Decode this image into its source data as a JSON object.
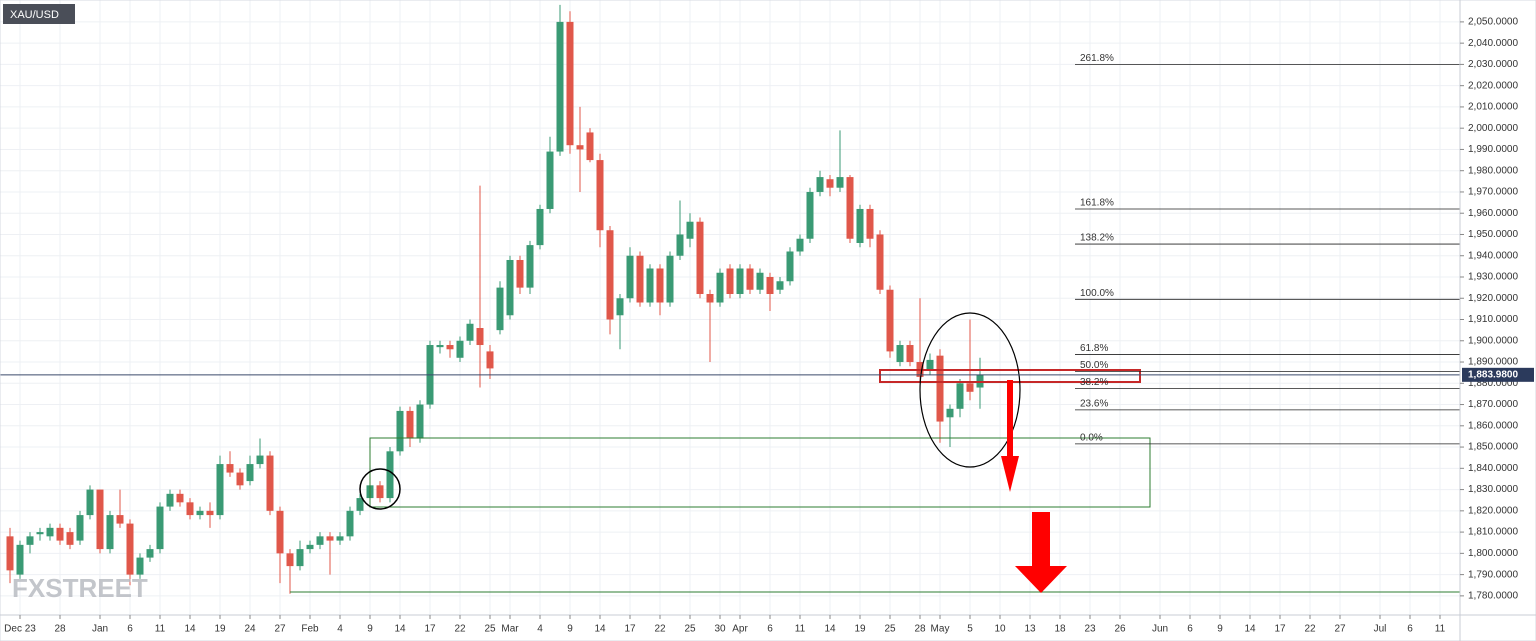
{
  "chart_data": {
    "type": "candlestick",
    "title": "XAU/USD",
    "watermark": "FXSTREET",
    "xlim": [
      -1,
      145
    ],
    "xticks": [
      {
        "value": 1,
        "label": "Dec 23"
      },
      {
        "value": 5,
        "label": "28"
      },
      {
        "value": 9,
        "label": "Jan"
      },
      {
        "value": 12,
        "label": "6"
      },
      {
        "value": 15,
        "label": "11"
      },
      {
        "value": 18,
        "label": "14"
      },
      {
        "value": 21,
        "label": "19"
      },
      {
        "value": 24,
        "label": "24"
      },
      {
        "value": 27,
        "label": "27"
      },
      {
        "value": 30,
        "label": "Feb"
      },
      {
        "value": 33,
        "label": "4"
      },
      {
        "value": 36,
        "label": "9"
      },
      {
        "value": 39,
        "label": "14"
      },
      {
        "value": 42,
        "label": "17"
      },
      {
        "value": 45,
        "label": "22"
      },
      {
        "value": 48,
        "label": "25"
      },
      {
        "value": 50,
        "label": "Mar"
      },
      {
        "value": 53,
        "label": "4"
      },
      {
        "value": 56,
        "label": "9"
      },
      {
        "value": 59,
        "label": "14"
      },
      {
        "value": 62,
        "label": "17"
      },
      {
        "value": 65,
        "label": "22"
      },
      {
        "value": 68,
        "label": "25"
      },
      {
        "value": 71,
        "label": "30"
      },
      {
        "value": 73,
        "label": "Apr"
      },
      {
        "value": 76,
        "label": "6"
      },
      {
        "value": 79,
        "label": "11"
      },
      {
        "value": 82,
        "label": "14"
      },
      {
        "value": 85,
        "label": "19"
      },
      {
        "value": 88,
        "label": "25"
      },
      {
        "value": 91,
        "label": "28"
      },
      {
        "value": 93,
        "label": "May"
      },
      {
        "value": 96,
        "label": "5"
      },
      {
        "value": 99,
        "label": "10"
      },
      {
        "value": 102,
        "label": "13"
      },
      {
        "value": 105,
        "label": "18"
      },
      {
        "value": 108,
        "label": "23"
      },
      {
        "value": 111,
        "label": "26"
      },
      {
        "value": 115,
        "label": "Jun"
      },
      {
        "value": 118,
        "label": "6"
      },
      {
        "value": 121,
        "label": "9"
      },
      {
        "value": 124,
        "label": "14"
      },
      {
        "value": 127,
        "label": "17"
      },
      {
        "value": 130,
        "label": "22"
      },
      {
        "value": 133,
        "label": "27"
      },
      {
        "value": 137,
        "label": "Jul"
      },
      {
        "value": 140,
        "label": "6"
      },
      {
        "value": 143,
        "label": "11"
      }
    ],
    "ylim": [
      1771,
      2060.3
    ],
    "yticks": [
      {
        "value": 1780,
        "label": "1,780.0000"
      },
      {
        "value": 1790,
        "label": "1,790.0000"
      },
      {
        "value": 1800,
        "label": "1,800.0000"
      },
      {
        "value": 1810,
        "label": "1,810.0000"
      },
      {
        "value": 1820,
        "label": "1,820.0000"
      },
      {
        "value": 1830,
        "label": "1,830.0000"
      },
      {
        "value": 1840,
        "label": "1,840.0000"
      },
      {
        "value": 1850,
        "label": "1,850.0000"
      },
      {
        "value": 1860,
        "label": "1,860.0000"
      },
      {
        "value": 1870,
        "label": "1,870.0000"
      },
      {
        "value": 1880,
        "label": "1,880.0000"
      },
      {
        "value": 1890,
        "label": "1,890.0000"
      },
      {
        "value": 1900,
        "label": "1,900.0000"
      },
      {
        "value": 1910,
        "label": "1,910.0000"
      },
      {
        "value": 1920,
        "label": "1,920.0000"
      },
      {
        "value": 1930,
        "label": "1,930.0000"
      },
      {
        "value": 1940,
        "label": "1,940.0000"
      },
      {
        "value": 1950,
        "label": "1,950.0000"
      },
      {
        "value": 1960,
        "label": "1,960.0000"
      },
      {
        "value": 1970,
        "label": "1,970.0000"
      },
      {
        "value": 1980,
        "label": "1,980.0000"
      },
      {
        "value": 1990,
        "label": "1,990.0000"
      },
      {
        "value": 2000,
        "label": "2,000.0000"
      },
      {
        "value": 2010,
        "label": "2,010.0000"
      },
      {
        "value": 2020,
        "label": "2,020.0000"
      },
      {
        "value": 2030,
        "label": "2,030.0000"
      },
      {
        "value": 2040,
        "label": "2,040.0000"
      },
      {
        "value": 2050,
        "label": "2,050.0000"
      }
    ],
    "grid": true,
    "up_color": "#3a9a74",
    "down_color": "#e0574a",
    "open": [
      1808,
      1790,
      1804,
      1809,
      1808,
      1812,
      1810,
      1806,
      1818,
      1830,
      1802,
      1818,
      1814,
      1790,
      1798,
      1802,
      1822,
      1828,
      1824,
      1818,
      1820,
      1818,
      1842,
      1838,
      1834,
      1842,
      1846,
      1820,
      1800,
      1794,
      1802,
      1804,
      1808,
      1806,
      1808,
      1820,
      1826,
      1832,
      1826,
      1848,
      1867,
      1854,
      1870,
      1897,
      1898,
      1892,
      1900,
      1906,
      1895,
      1905,
      1912,
      1938,
      1925,
      1945,
      1962,
      1989,
      2050,
      1992,
      1998,
      1985,
      1952,
      1912,
      1920,
      1940,
      1918,
      1934,
      1918,
      1940,
      1948,
      1956,
      1922,
      1918,
      1934,
      1922,
      1934,
      1924,
      1930,
      1924,
      1928,
      1942,
      1948,
      1970,
      1976,
      1972,
      1977,
      1946,
      1962,
      1950,
      1924,
      1890,
      1898,
      1890,
      1886,
      1893,
      1864,
      1868,
      1880,
      1878
    ],
    "high": [
      1812,
      1806,
      1810,
      1812,
      1814,
      1814,
      1812,
      1820,
      1832,
      1830,
      1820,
      1830,
      1816,
      1800,
      1804,
      1824,
      1830,
      1830,
      1826,
      1822,
      1824,
      1846,
      1848,
      1840,
      1846,
      1854,
      1848,
      1822,
      1802,
      1806,
      1806,
      1810,
      1810,
      1810,
      1822,
      1828,
      1834,
      1834,
      1850,
      1869,
      1869,
      1872,
      1900,
      1900,
      1900,
      1902,
      1910,
      1973,
      1898,
      1928,
      1940,
      1940,
      1947,
      1964,
      1996,
      2058,
      2055,
      2010,
      2000,
      1988,
      1954,
      1922,
      1944,
      1942,
      1936,
      1936,
      1942,
      1966,
      1960,
      1958,
      1924,
      1934,
      1936,
      1936,
      1936,
      1934,
      1932,
      1930,
      1944,
      1950,
      1972,
      1980,
      1978,
      1999,
      1978,
      1964,
      1964,
      1952,
      1926,
      1900,
      1900,
      1920,
      1894,
      1896,
      1870,
      1882,
      1910,
      1892
    ],
    "low": [
      1786,
      1788,
      1800,
      1806,
      1806,
      1804,
      1802,
      1804,
      1816,
      1800,
      1800,
      1812,
      1785,
      1788,
      1796,
      1800,
      1820,
      1822,
      1816,
      1816,
      1812,
      1816,
      1836,
      1830,
      1832,
      1840,
      1818,
      1786,
      1781,
      1792,
      1800,
      1802,
      1790,
      1804,
      1806,
      1818,
      1824,
      1824,
      1824,
      1846,
      1850,
      1852,
      1868,
      1894,
      1892,
      1890,
      1898,
      1878,
      1882,
      1903,
      1910,
      1922,
      1922,
      1943,
      1960,
      1987,
      1988,
      1970,
      1984,
      1944,
      1903,
      1896,
      1918,
      1916,
      1916,
      1912,
      1916,
      1938,
      1944,
      1920,
      1890,
      1916,
      1920,
      1920,
      1922,
      1922,
      1914,
      1922,
      1926,
      1940,
      1946,
      1968,
      1968,
      1970,
      1946,
      1944,
      1944,
      1922,
      1892,
      1888,
      1888,
      1881,
      1884,
      1852,
      1850,
      1864,
      1872,
      1868
    ],
    "close": [
      1792,
      1804,
      1808,
      1810,
      1812,
      1806,
      1804,
      1818,
      1830,
      1802,
      1818,
      1814,
      1790,
      1798,
      1802,
      1822,
      1828,
      1824,
      1818,
      1820,
      1818,
      1842,
      1838,
      1832,
      1842,
      1846,
      1820,
      1800,
      1794,
      1802,
      1804,
      1808,
      1806,
      1808,
      1820,
      1826,
      1832,
      1826,
      1848,
      1867,
      1854,
      1870,
      1898,
      1898,
      1896,
      1900,
      1908,
      1898,
      1887,
      1925,
      1938,
      1925,
      1945,
      1962,
      1989,
      2050,
      1992,
      1990,
      1985,
      1952,
      1910,
      1920,
      1940,
      1918,
      1934,
      1918,
      1940,
      1950,
      1956,
      1922,
      1918,
      1932,
      1922,
      1934,
      1924,
      1932,
      1922,
      1928,
      1942,
      1948,
      1970,
      1977,
      1972,
      1977,
      1948,
      1962,
      1948,
      1924,
      1895,
      1898,
      1890,
      1883,
      1891,
      1862,
      1868,
      1880,
      1876,
      1884
    ],
    "last_price": {
      "value": 1883.98,
      "label": "1,883.9800"
    },
    "levels": [
      {
        "label": "261.8%",
        "value": 2030
      },
      {
        "label": "161.8%",
        "value": 1962
      },
      {
        "label": "138.2%",
        "value": 1945.5
      },
      {
        "label": "100.0%",
        "value": 1919.5
      },
      {
        "label": "61.8%",
        "value": 1893.5
      },
      {
        "label": "50.0%",
        "value": 1885.5
      },
      {
        "label": "38.2%",
        "value": 1877.5
      },
      {
        "label": "23.6%",
        "value": 1867.5
      },
      {
        "label": "0.0%",
        "value": 1851.5
      }
    ]
  }
}
